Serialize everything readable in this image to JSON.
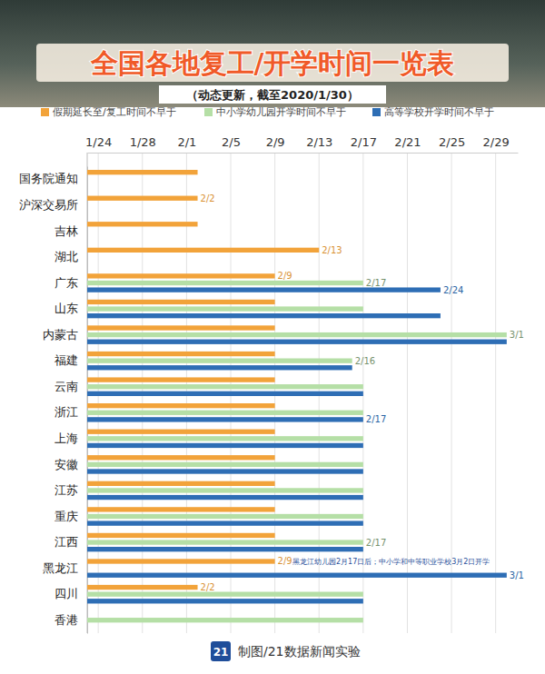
{
  "chart_data": {
    "type": "bar",
    "orientation": "horizontal",
    "title": "全国各地复工/开学时间一览表",
    "subtitle": "（动态更新，截至2020/1/30）",
    "categories": [
      "国务院通知",
      "沪深交易所",
      "吉林",
      "湖北",
      "广东",
      "山东",
      "内蒙古",
      "福建",
      "云南",
      "浙江",
      "上海",
      "安徽",
      "江苏",
      "重庆",
      "江西",
      "黑龙江",
      "四川",
      "香港"
    ],
    "series": [
      {
        "name": "假期延长至/复工时间不早于",
        "color": "#f2a33a",
        "values": [
          33,
          33,
          33,
          44,
          40,
          40,
          40,
          40,
          40,
          40,
          40,
          40,
          40,
          40,
          40,
          40,
          33,
          null
        ],
        "value_labels": [
          null,
          "2/2",
          null,
          "2/13",
          "2/9",
          null,
          null,
          null,
          null,
          null,
          null,
          null,
          null,
          null,
          null,
          "2/9",
          "2/2",
          null
        ]
      },
      {
        "name": "中小学幼儿园开学时间不早于",
        "color": "#b5dfa6",
        "values": [
          null,
          null,
          null,
          null,
          48,
          48,
          61,
          47,
          48,
          48,
          48,
          48,
          48,
          48,
          48,
          null,
          48,
          48
        ],
        "value_labels": [
          null,
          null,
          null,
          null,
          "2/17",
          null,
          "3/1",
          "2/16",
          null,
          null,
          null,
          null,
          null,
          null,
          "2/17",
          null,
          null,
          null
        ]
      },
      {
        "name": "高等学校开学时间不早于",
        "color": "#2e6eb5",
        "values": [
          null,
          null,
          null,
          null,
          55,
          55,
          61,
          47,
          48,
          48,
          48,
          48,
          48,
          48,
          48,
          61,
          48,
          null
        ],
        "value_labels": [
          null,
          null,
          null,
          null,
          "2/24",
          null,
          null,
          null,
          null,
          "2/17",
          null,
          null,
          null,
          null,
          null,
          "3/1",
          null,
          null
        ]
      }
    ],
    "xlim": [
      23,
      62
    ],
    "xticks": [
      {
        "value": 24,
        "label": "1/24"
      },
      {
        "value": 28,
        "label": "1/28"
      },
      {
        "value": 32,
        "label": "2/1"
      },
      {
        "value": 36,
        "label": "2/5"
      },
      {
        "value": 40,
        "label": "2/9"
      },
      {
        "value": 44,
        "label": "2/13"
      },
      {
        "value": 48,
        "label": "2/17"
      },
      {
        "value": 52,
        "label": "2/21"
      },
      {
        "value": 56,
        "label": "2/25"
      },
      {
        "value": 60,
        "label": "2/29"
      }
    ],
    "grid": true,
    "legend": "top",
    "data_labels": true,
    "annotations": [
      {
        "text": "黑龙江幼儿园2月17日后；中小学和中等职业学校3月2日开学",
        "category": "黑龙江"
      }
    ],
    "logo": "21",
    "source": "制图/21数据新闻实验"
  }
}
